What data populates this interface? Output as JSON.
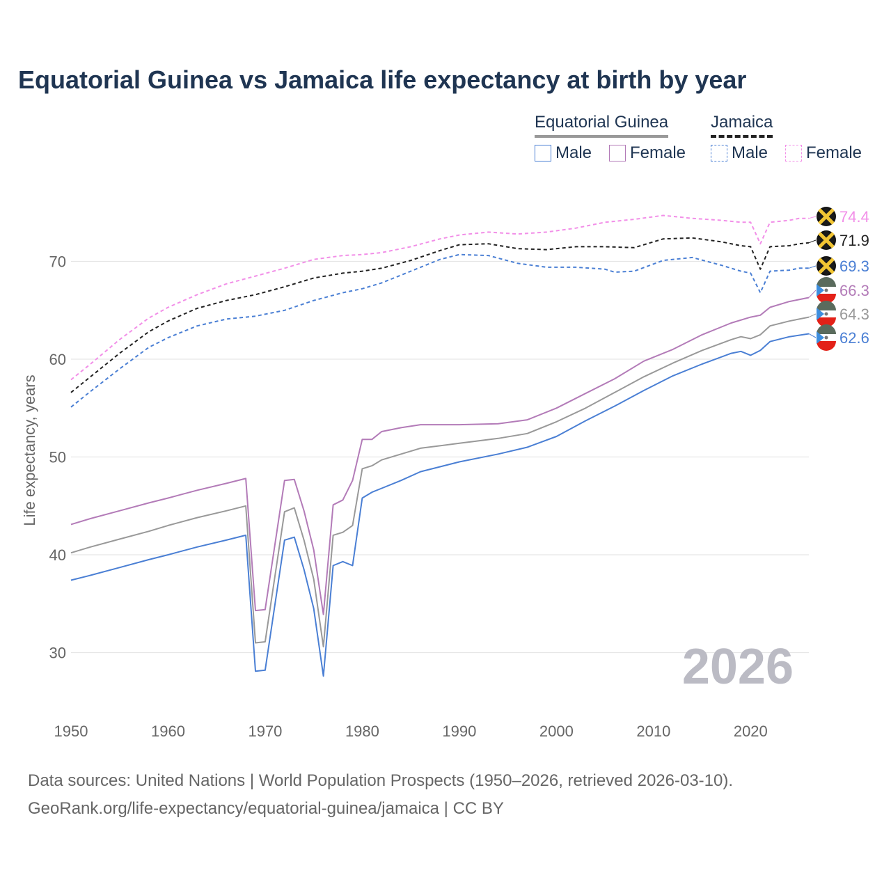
{
  "title": "Equatorial Guinea vs Jamaica life expectancy at birth by year",
  "legend": {
    "groups": [
      {
        "name": "Equatorial Guinea",
        "style": "solid",
        "color": "#999999"
      },
      {
        "name": "Jamaica",
        "style": "dashed",
        "color": "#222222"
      }
    ],
    "items": [
      {
        "label": "Male",
        "group": "Equatorial Guinea",
        "color": "#4a7fd4",
        "style": "solid"
      },
      {
        "label": "Female",
        "group": "Equatorial Guinea",
        "color": "#b37bb8",
        "style": "solid"
      },
      {
        "label": "Male",
        "group": "Jamaica",
        "color": "#4a7fd4",
        "style": "dashed"
      },
      {
        "label": "Female",
        "group": "Jamaica",
        "color": "#f28fe8",
        "style": "dashed"
      }
    ]
  },
  "year_watermark": "2026",
  "footer": {
    "line1": "Data sources: United Nations | World Population Prospects (1950–2026, retrieved 2026-03-10).",
    "line2": "GeoRank.org/life-expectancy/equatorial-guinea/jamaica | CC BY"
  },
  "chart_data": {
    "type": "line",
    "ylabel": "Life expectancy, years",
    "xlabel": "",
    "xlim": [
      1950,
      2026
    ],
    "ylim": [
      24,
      79
    ],
    "yticks": [
      30,
      40,
      50,
      60,
      70
    ],
    "xticks": [
      1950,
      1960,
      1970,
      1980,
      1990,
      2000,
      2010,
      2020
    ],
    "series": [
      {
        "name": "Jamaica Female",
        "country": "Jamaica",
        "color": "#f28fe8",
        "dashed": true,
        "end_label": "74.4",
        "flag": "jamaica",
        "points": [
          [
            1950,
            57.9
          ],
          [
            1952,
            59.5
          ],
          [
            1955,
            62.0
          ],
          [
            1958,
            64.2
          ],
          [
            1960,
            65.3
          ],
          [
            1963,
            66.6
          ],
          [
            1966,
            67.7
          ],
          [
            1969,
            68.5
          ],
          [
            1972,
            69.3
          ],
          [
            1975,
            70.2
          ],
          [
            1978,
            70.6
          ],
          [
            1980,
            70.7
          ],
          [
            1982,
            70.9
          ],
          [
            1985,
            71.5
          ],
          [
            1988,
            72.3
          ],
          [
            1990,
            72.7
          ],
          [
            1993,
            73.0
          ],
          [
            1996,
            72.8
          ],
          [
            1999,
            73.0
          ],
          [
            2002,
            73.4
          ],
          [
            2005,
            74.0
          ],
          [
            2008,
            74.3
          ],
          [
            2011,
            74.7
          ],
          [
            2014,
            74.4
          ],
          [
            2017,
            74.2
          ],
          [
            2019,
            74.0
          ],
          [
            2020,
            74.0
          ],
          [
            2021,
            71.8
          ],
          [
            2022,
            74.0
          ],
          [
            2024,
            74.2
          ],
          [
            2025,
            74.4
          ],
          [
            2026,
            74.4
          ]
        ]
      },
      {
        "name": "Jamaica Total",
        "country": "Jamaica",
        "color": "#222222",
        "dashed": true,
        "end_label": "71.9",
        "flag": "jamaica",
        "points": [
          [
            1950,
            56.6
          ],
          [
            1952,
            58.2
          ],
          [
            1955,
            60.6
          ],
          [
            1958,
            62.8
          ],
          [
            1960,
            63.9
          ],
          [
            1963,
            65.2
          ],
          [
            1966,
            66.0
          ],
          [
            1969,
            66.6
          ],
          [
            1972,
            67.4
          ],
          [
            1975,
            68.3
          ],
          [
            1978,
            68.8
          ],
          [
            1980,
            69.0
          ],
          [
            1982,
            69.3
          ],
          [
            1985,
            70.1
          ],
          [
            1988,
            71.1
          ],
          [
            1990,
            71.7
          ],
          [
            1993,
            71.8
          ],
          [
            1996,
            71.3
          ],
          [
            1999,
            71.2
          ],
          [
            2002,
            71.5
          ],
          [
            2005,
            71.5
          ],
          [
            2008,
            71.4
          ],
          [
            2011,
            72.3
          ],
          [
            2014,
            72.4
          ],
          [
            2017,
            72.0
          ],
          [
            2019,
            71.6
          ],
          [
            2020,
            71.5
          ],
          [
            2021,
            69.2
          ],
          [
            2022,
            71.5
          ],
          [
            2024,
            71.6
          ],
          [
            2025,
            71.8
          ],
          [
            2026,
            71.9
          ]
        ]
      },
      {
        "name": "Jamaica Male",
        "country": "Jamaica",
        "color": "#4a7fd4",
        "dashed": true,
        "end_label": "69.3",
        "flag": "jamaica",
        "points": [
          [
            1950,
            55.1
          ],
          [
            1952,
            56.7
          ],
          [
            1955,
            59.0
          ],
          [
            1958,
            61.2
          ],
          [
            1960,
            62.2
          ],
          [
            1963,
            63.4
          ],
          [
            1966,
            64.1
          ],
          [
            1969,
            64.4
          ],
          [
            1972,
            65.0
          ],
          [
            1975,
            66.0
          ],
          [
            1978,
            66.8
          ],
          [
            1980,
            67.2
          ],
          [
            1982,
            67.8
          ],
          [
            1985,
            69.0
          ],
          [
            1988,
            70.2
          ],
          [
            1990,
            70.7
          ],
          [
            1993,
            70.6
          ],
          [
            1996,
            69.8
          ],
          [
            1999,
            69.4
          ],
          [
            2002,
            69.4
          ],
          [
            2005,
            69.2
          ],
          [
            2006,
            68.9
          ],
          [
            2008,
            69.0
          ],
          [
            2011,
            70.1
          ],
          [
            2014,
            70.4
          ],
          [
            2017,
            69.6
          ],
          [
            2019,
            69.0
          ],
          [
            2020,
            68.8
          ],
          [
            2021,
            66.8
          ],
          [
            2022,
            69.0
          ],
          [
            2024,
            69.1
          ],
          [
            2025,
            69.3
          ],
          [
            2026,
            69.3
          ]
        ]
      },
      {
        "name": "Equatorial Guinea Female",
        "country": "Equatorial Guinea",
        "color": "#b37bb8",
        "dashed": false,
        "end_label": "66.3",
        "flag": "equatorial-guinea",
        "points": [
          [
            1950,
            43.1
          ],
          [
            1952,
            43.7
          ],
          [
            1955,
            44.5
          ],
          [
            1958,
            45.3
          ],
          [
            1960,
            45.8
          ],
          [
            1963,
            46.6
          ],
          [
            1966,
            47.3
          ],
          [
            1968,
            47.8
          ],
          [
            1969,
            34.3
          ],
          [
            1970,
            34.4
          ],
          [
            1972,
            47.6
          ],
          [
            1973,
            47.7
          ],
          [
            1974,
            44.5
          ],
          [
            1975,
            40.5
          ],
          [
            1976,
            33.9
          ],
          [
            1977,
            45.1
          ],
          [
            1978,
            45.6
          ],
          [
            1979,
            47.6
          ],
          [
            1980,
            51.8
          ],
          [
            1981,
            51.8
          ],
          [
            1982,
            52.6
          ],
          [
            1984,
            53.0
          ],
          [
            1986,
            53.3
          ],
          [
            1990,
            53.3
          ],
          [
            1994,
            53.4
          ],
          [
            1997,
            53.8
          ],
          [
            2000,
            55.0
          ],
          [
            2003,
            56.5
          ],
          [
            2006,
            58.0
          ],
          [
            2009,
            59.8
          ],
          [
            2012,
            61.0
          ],
          [
            2015,
            62.5
          ],
          [
            2018,
            63.7
          ],
          [
            2020,
            64.3
          ],
          [
            2021,
            64.5
          ],
          [
            2022,
            65.3
          ],
          [
            2024,
            65.9
          ],
          [
            2026,
            66.3
          ]
        ]
      },
      {
        "name": "Equatorial Guinea Total",
        "country": "Equatorial Guinea",
        "color": "#999999",
        "dashed": false,
        "end_label": "64.3",
        "flag": "equatorial-guinea",
        "points": [
          [
            1950,
            40.2
          ],
          [
            1952,
            40.8
          ],
          [
            1955,
            41.6
          ],
          [
            1958,
            42.4
          ],
          [
            1960,
            43.0
          ],
          [
            1963,
            43.8
          ],
          [
            1966,
            44.5
          ],
          [
            1968,
            45.0
          ],
          [
            1969,
            31.0
          ],
          [
            1970,
            31.1
          ],
          [
            1972,
            44.4
          ],
          [
            1973,
            44.8
          ],
          [
            1974,
            41.5
          ],
          [
            1975,
            37.5
          ],
          [
            1976,
            30.6
          ],
          [
            1977,
            42.0
          ],
          [
            1978,
            42.3
          ],
          [
            1979,
            43.0
          ],
          [
            1980,
            48.8
          ],
          [
            1981,
            49.1
          ],
          [
            1982,
            49.7
          ],
          [
            1984,
            50.3
          ],
          [
            1986,
            50.9
          ],
          [
            1990,
            51.4
          ],
          [
            1994,
            51.9
          ],
          [
            1997,
            52.4
          ],
          [
            2000,
            53.6
          ],
          [
            2003,
            55.0
          ],
          [
            2006,
            56.6
          ],
          [
            2009,
            58.2
          ],
          [
            2012,
            59.6
          ],
          [
            2015,
            60.9
          ],
          [
            2018,
            62.0
          ],
          [
            2019,
            62.3
          ],
          [
            2020,
            62.1
          ],
          [
            2021,
            62.5
          ],
          [
            2022,
            63.4
          ],
          [
            2024,
            63.9
          ],
          [
            2026,
            64.3
          ]
        ]
      },
      {
        "name": "Equatorial Guinea Male",
        "country": "Equatorial Guinea",
        "color": "#4a7fd4",
        "dashed": false,
        "end_label": "62.6",
        "flag": "equatorial-guinea",
        "points": [
          [
            1950,
            37.4
          ],
          [
            1952,
            37.9
          ],
          [
            1955,
            38.7
          ],
          [
            1958,
            39.5
          ],
          [
            1960,
            40.0
          ],
          [
            1963,
            40.8
          ],
          [
            1966,
            41.5
          ],
          [
            1968,
            42.0
          ],
          [
            1969,
            28.1
          ],
          [
            1970,
            28.2
          ],
          [
            1972,
            41.5
          ],
          [
            1973,
            41.8
          ],
          [
            1974,
            38.5
          ],
          [
            1975,
            34.5
          ],
          [
            1976,
            27.6
          ],
          [
            1977,
            38.9
          ],
          [
            1978,
            39.3
          ],
          [
            1979,
            38.9
          ],
          [
            1980,
            45.8
          ],
          [
            1981,
            46.4
          ],
          [
            1982,
            46.8
          ],
          [
            1984,
            47.6
          ],
          [
            1986,
            48.5
          ],
          [
            1990,
            49.5
          ],
          [
            1994,
            50.3
          ],
          [
            1997,
            51.0
          ],
          [
            2000,
            52.1
          ],
          [
            2003,
            53.7
          ],
          [
            2006,
            55.2
          ],
          [
            2009,
            56.8
          ],
          [
            2012,
            58.3
          ],
          [
            2015,
            59.5
          ],
          [
            2018,
            60.6
          ],
          [
            2019,
            60.8
          ],
          [
            2020,
            60.4
          ],
          [
            2021,
            60.9
          ],
          [
            2022,
            61.8
          ],
          [
            2024,
            62.3
          ],
          [
            2026,
            62.6
          ]
        ]
      }
    ]
  }
}
